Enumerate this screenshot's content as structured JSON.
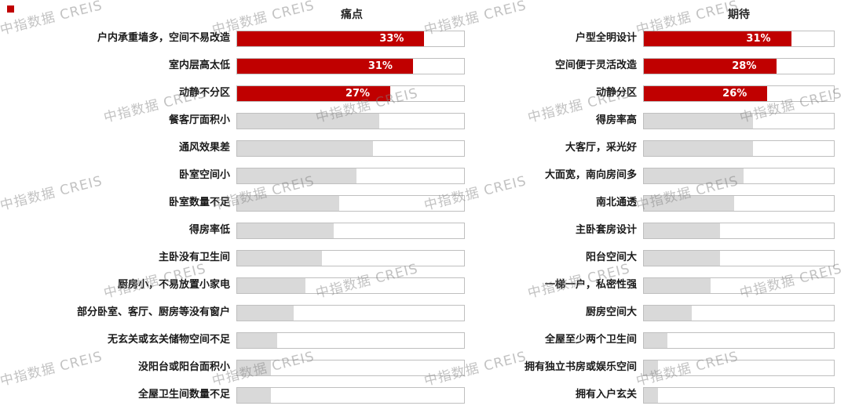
{
  "watermark": {
    "text": "中指数据 CREIS"
  },
  "colors": {
    "highlight_bar": "#C00000",
    "normal_bar": "#D9D9D9",
    "track_border": "#BFBFBF",
    "data_label_text": "#FFFFFF"
  },
  "chart_data": [
    {
      "type": "bar",
      "orientation": "horizontal",
      "title": "痛点",
      "categories": [
        "户内承重墙多，空间不易改造",
        "室内层高太低",
        "动静不分区",
        "餐客厅面积小",
        "通风效果差",
        "卧室空间小",
        "卧室数量不足",
        "得房率低",
        "主卧没有卫生间",
        "厨房小，不易放置小家电",
        "部分卧室、客厅、厨房等没有窗户",
        "无玄关或玄关储物空间不足",
        "没阳台或阳台面积小",
        "全屋卫生间数量不足"
      ],
      "values": [
        33,
        31,
        27,
        25,
        24,
        21,
        18,
        17,
        15,
        12,
        10,
        7,
        6,
        6
      ],
      "data_labels": [
        "33%",
        "31%",
        "27%"
      ],
      "highlighted_count": 3,
      "xlim": [
        0,
        40
      ],
      "grid": false,
      "legend": "none",
      "value_unit": "%"
    },
    {
      "type": "bar",
      "orientation": "horizontal",
      "title": "期待",
      "categories": [
        "户型全明设计",
        "空间便于灵活改造",
        "动静分区",
        "得房率高",
        "大客厅，采光好",
        "大面宽，南向房间多",
        "南北通透",
        "主卧套房设计",
        "阳台空间大",
        "一梯一户，私密性强",
        "厨房空间大",
        "全屋至少两个卫生间",
        "拥有独立书房或娱乐空间",
        "拥有入户玄关"
      ],
      "values": [
        31,
        28,
        26,
        23,
        23,
        21,
        19,
        16,
        16,
        14,
        10,
        5,
        3,
        3
      ],
      "data_labels": [
        "31%",
        "28%",
        "26%"
      ],
      "highlighted_count": 3,
      "xlim": [
        0,
        40
      ],
      "grid": false,
      "legend": "none",
      "value_unit": "%"
    }
  ]
}
